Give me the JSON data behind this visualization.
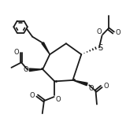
{
  "bg_color": "#ffffff",
  "line_color": "#1a1a1a",
  "lw": 1.3,
  "figsize": [
    1.6,
    1.5
  ],
  "dpi": 100,
  "xlim": [
    0.0,
    1.0
  ],
  "ylim": [
    0.0,
    1.0
  ]
}
